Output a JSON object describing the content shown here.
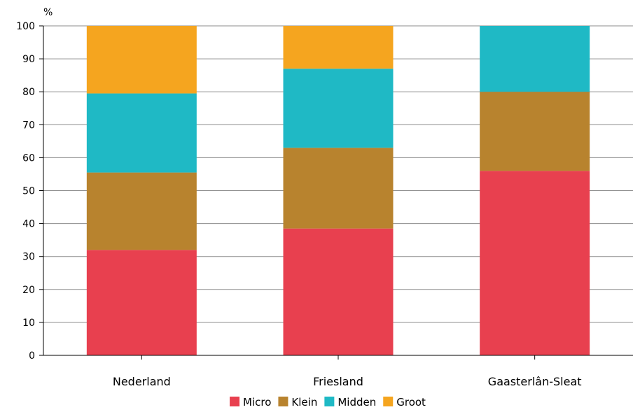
{
  "chart_data": {
    "type": "bar",
    "stacked": true,
    "unit": "%",
    "categories": [
      "Nederland",
      "Friesland",
      "Gaasterlân-Sleat"
    ],
    "series": [
      {
        "name": "Micro",
        "color": "#e8404f",
        "values": [
          32,
          38.5,
          56
        ]
      },
      {
        "name": "Klein",
        "color": "#b8832e",
        "values": [
          23.5,
          24.5,
          24
        ]
      },
      {
        "name": "Midden",
        "color": "#1fb9c5",
        "values": [
          24,
          24,
          20
        ]
      },
      {
        "name": "Groot",
        "color": "#f5a51f",
        "values": [
          20.5,
          13,
          0
        ]
      }
    ],
    "ylim": [
      0,
      100
    ],
    "yticks": [
      "0",
      "10",
      "20",
      "30",
      "40",
      "50",
      "60",
      "70",
      "80",
      "90",
      "100"
    ],
    "grid": true,
    "legend_position": "bottom"
  }
}
